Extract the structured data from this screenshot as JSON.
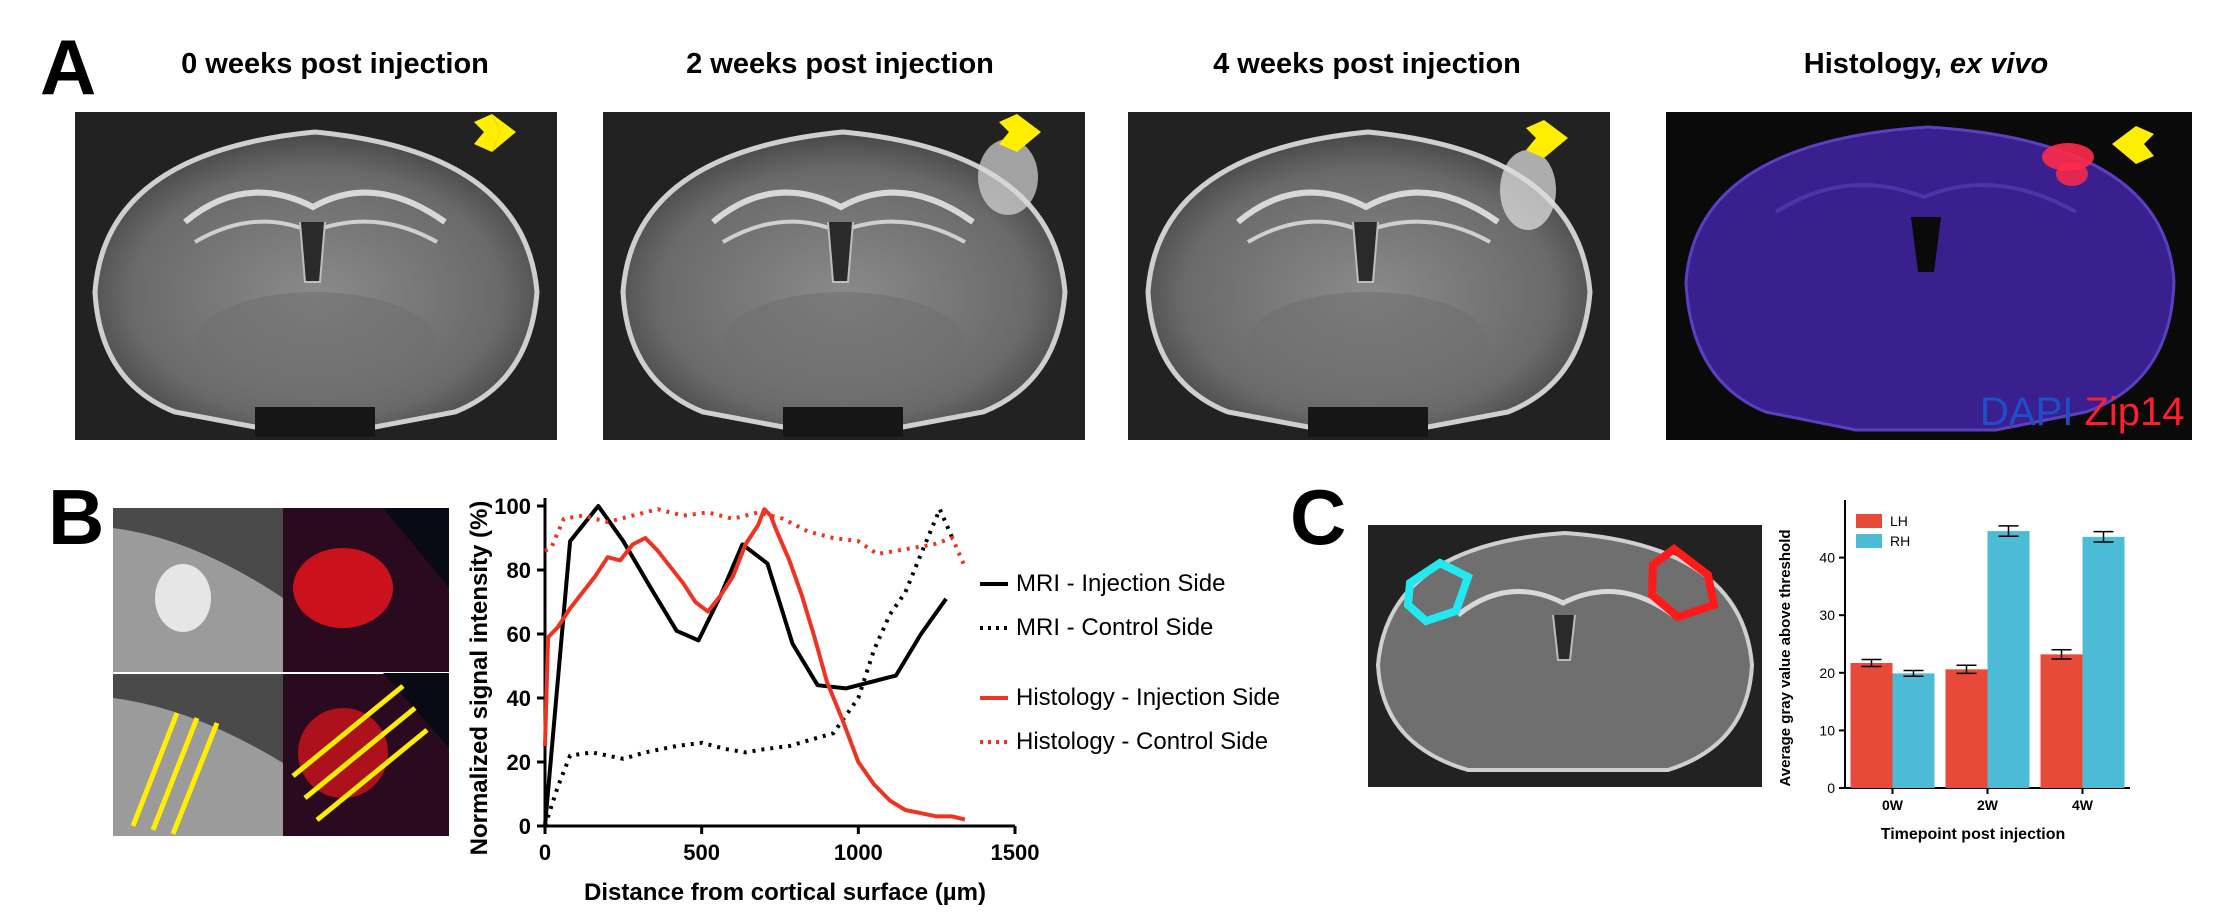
{
  "panel_a": {
    "letter": "A",
    "titles": [
      "0 weeks post injection",
      "2 weeks post injection",
      "4 weeks post injection"
    ],
    "histology_title_main": "Histology, ",
    "histology_title_italic": "ex vivo",
    "histology_legend_dapi": "DAPI",
    "histology_legend_zip14": "Zip14"
  },
  "panel_b": {
    "letter": "B"
  },
  "panel_c": {
    "letter": "C"
  },
  "chart_data": [
    {
      "type": "line",
      "xlabel": "Distance from cortical surface (µm)",
      "ylabel": "Normalized signal intensity (%)",
      "xlim": [
        0,
        1500
      ],
      "ylim": [
        0,
        100
      ],
      "xticks": [
        "0",
        "500",
        "1000",
        "1500"
      ],
      "yticks": [
        "0",
        "20",
        "40",
        "60",
        "80",
        "100"
      ],
      "series": [
        {
          "name": "MRI - Injection Side",
          "color": "#000000",
          "style": "solid",
          "x": [
            0,
            80,
            170,
            250,
            340,
            420,
            490,
            560,
            630,
            710,
            790,
            870,
            960,
            1040,
            1120,
            1200,
            1280
          ],
          "y": [
            0,
            89,
            100,
            89,
            74,
            61,
            58,
            72,
            88,
            82,
            57,
            44,
            43,
            45,
            47,
            60,
            71
          ]
        },
        {
          "name": "MRI - Control Side",
          "color": "#000000",
          "style": "dotted",
          "x": [
            0,
            40,
            80,
            150,
            250,
            320,
            420,
            500,
            580,
            640,
            700,
            780,
            850,
            920,
            1000,
            1050,
            1100,
            1150,
            1200,
            1260,
            1300
          ],
          "y": [
            0,
            12,
            22,
            23,
            21,
            23,
            25,
            26,
            24,
            23,
            24,
            25,
            27,
            29,
            40,
            55,
            66,
            73,
            85,
            99,
            90
          ]
        },
        {
          "name": "Histology - Injection Side",
          "color": "#ee3322",
          "style": "solid",
          "x": [
            0,
            10,
            40,
            80,
            120,
            160,
            200,
            240,
            280,
            320,
            360,
            400,
            440,
            480,
            520,
            560,
            600,
            640,
            680,
            700,
            720,
            740,
            780,
            820,
            860,
            900,
            950,
            1000,
            1050,
            1100,
            1150,
            1200,
            1250,
            1300,
            1340
          ],
          "y": [
            25,
            59,
            62,
            68,
            73,
            78,
            84,
            83,
            88,
            90,
            86,
            81,
            76,
            70,
            67,
            72,
            78,
            88,
            94,
            99,
            97,
            92,
            83,
            72,
            59,
            45,
            33,
            20,
            13,
            8,
            5,
            4,
            3,
            3,
            2
          ]
        },
        {
          "name": "Histology - Control Side",
          "color": "#ee3322",
          "style": "dotted",
          "x": [
            0,
            20,
            60,
            120,
            200,
            280,
            360,
            440,
            520,
            600,
            680,
            760,
            840,
            920,
            1000,
            1060,
            1120,
            1180,
            1240,
            1300,
            1340
          ],
          "y": [
            86,
            87,
            96,
            97,
            95,
            97,
            99,
            97,
            98,
            96,
            98,
            96,
            92,
            90,
            89,
            85,
            86,
            87,
            88,
            90,
            81
          ]
        }
      ],
      "legend": [
        "MRI - Injection Side",
        "MRI - Control Side",
        "Histology - Injection Side",
        "Histology - Control Side"
      ]
    },
    {
      "type": "bar",
      "categories": [
        "0W",
        "2W",
        "4W"
      ],
      "series": [
        {
          "name": "LH",
          "color": "#e84a3a",
          "values": [
            21.7,
            20.6,
            23.2
          ],
          "errors": [
            0.6,
            0.7,
            0.8
          ]
        },
        {
          "name": "RH",
          "color": "#4cbcd6",
          "values": [
            19.9,
            44.6,
            43.6
          ],
          "errors": [
            0.5,
            0.9,
            0.9
          ]
        }
      ],
      "xlabel": "Timepoint post injection",
      "ylabel": "Average gray value above threshold",
      "ylim": [
        0,
        50
      ],
      "yticks": [
        "0",
        "10",
        "20",
        "30",
        "40"
      ]
    }
  ]
}
